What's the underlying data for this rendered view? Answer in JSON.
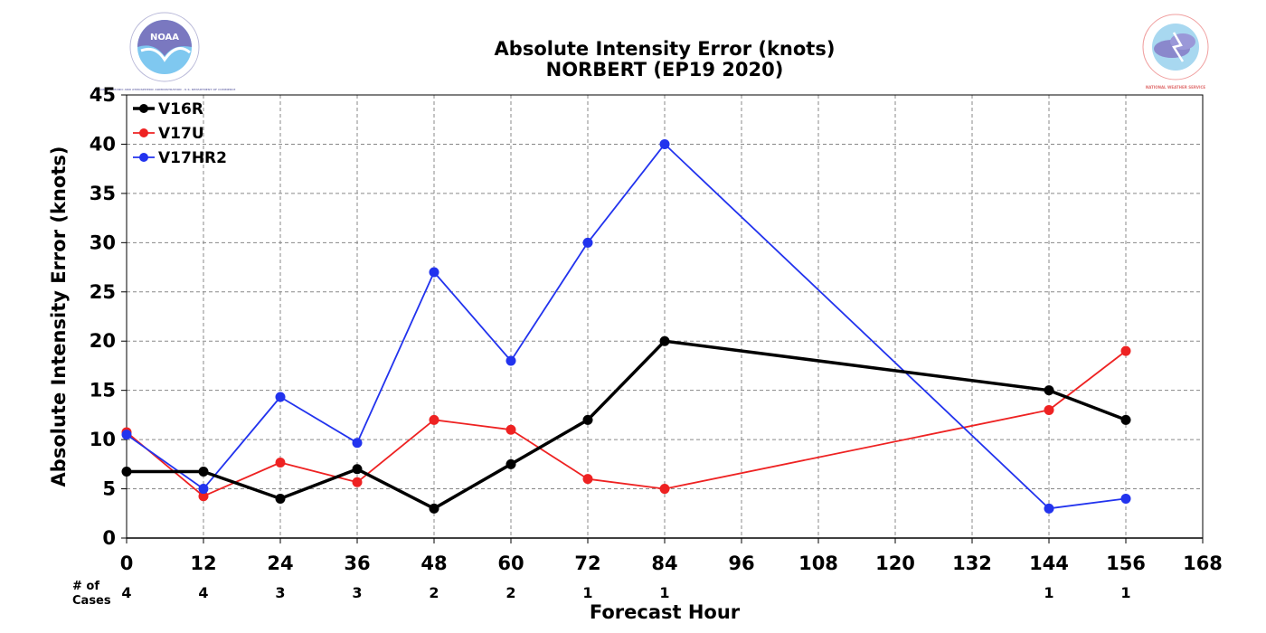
{
  "logos": {
    "left": {
      "text": "NOAA",
      "ring_text": "NATIONAL OCEANIC AND ATMOSPHERIC ADMINISTRATION · U.S. DEPARTMENT OF COMMERCE"
    },
    "right": {
      "ring_text": "NATIONAL WEATHER SERVICE"
    }
  },
  "chart_data": {
    "type": "line",
    "title": "Absolute Intensity Error (knots)",
    "subtitle": "NORBERT (EP19 2020)",
    "xlabel": "Forecast Hour",
    "ylabel": "Absolute Intensity Error (knots)",
    "xlim": [
      0,
      168
    ],
    "ylim": [
      0,
      45
    ],
    "xticks": [
      0,
      12,
      24,
      36,
      48,
      60,
      72,
      84,
      96,
      108,
      120,
      132,
      144,
      156,
      168
    ],
    "yticks": [
      0,
      5,
      10,
      15,
      20,
      25,
      30,
      35,
      40,
      45
    ],
    "grid": true,
    "legend_position": "top-left",
    "cases_label": [
      "# of",
      "Cases"
    ],
    "cases": [
      {
        "x": 0,
        "n": "4"
      },
      {
        "x": 12,
        "n": "4"
      },
      {
        "x": 24,
        "n": "3"
      },
      {
        "x": 36,
        "n": "3"
      },
      {
        "x": 48,
        "n": "2"
      },
      {
        "x": 60,
        "n": "2"
      },
      {
        "x": 72,
        "n": "1"
      },
      {
        "x": 84,
        "n": "1"
      },
      {
        "x": 144,
        "n": "1"
      },
      {
        "x": 156,
        "n": "1"
      }
    ],
    "series": [
      {
        "name": "V16R",
        "color": "#000000",
        "width": 3.5,
        "x": [
          0,
          12,
          24,
          36,
          48,
          60,
          72,
          84,
          144,
          156
        ],
        "values": [
          6.75,
          6.75,
          4.0,
          7.0,
          3.0,
          7.5,
          12.0,
          20.0,
          15.0,
          12.0
        ]
      },
      {
        "name": "V17U",
        "color": "#ee2222",
        "width": 1.8,
        "x": [
          0,
          12,
          24,
          36,
          48,
          60,
          72,
          84,
          144,
          156
        ],
        "values": [
          10.75,
          4.25,
          7.67,
          5.67,
          12.0,
          11.0,
          6.0,
          5.0,
          13.0,
          19.0
        ]
      },
      {
        "name": "V17HR2",
        "color": "#2233ee",
        "width": 1.8,
        "x": [
          0,
          12,
          24,
          36,
          48,
          60,
          72,
          84,
          144,
          156
        ],
        "values": [
          10.5,
          5.0,
          14.33,
          9.67,
          27.0,
          18.0,
          30.0,
          40.0,
          3.0,
          4.0
        ]
      }
    ]
  }
}
